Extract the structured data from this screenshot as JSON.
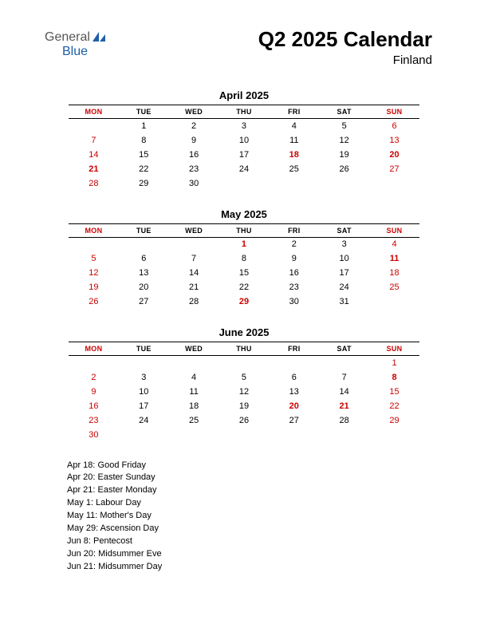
{
  "logo": {
    "text1": "General",
    "text2": "Blue"
  },
  "header": {
    "title": "Q2 2025 Calendar",
    "subtitle": "Finland"
  },
  "colors": {
    "text": "#000000",
    "red": "#cc0000",
    "background": "#ffffff",
    "logo_gray": "#555555",
    "logo_blue": "#1e5fa8"
  },
  "day_headers": [
    "MON",
    "TUE",
    "WED",
    "THU",
    "FRI",
    "SAT",
    "SUN"
  ],
  "header_red_cols": [
    0,
    6
  ],
  "months": [
    {
      "title": "April 2025",
      "weeks": [
        [
          {
            "d": ""
          },
          {
            "d": "1"
          },
          {
            "d": "2"
          },
          {
            "d": "3"
          },
          {
            "d": "4"
          },
          {
            "d": "5"
          },
          {
            "d": "6",
            "r": 1
          }
        ],
        [
          {
            "d": "7",
            "r": 1
          },
          {
            "d": "8"
          },
          {
            "d": "9"
          },
          {
            "d": "10"
          },
          {
            "d": "11"
          },
          {
            "d": "12"
          },
          {
            "d": "13",
            "r": 1
          }
        ],
        [
          {
            "d": "14",
            "r": 1
          },
          {
            "d": "15"
          },
          {
            "d": "16"
          },
          {
            "d": "17"
          },
          {
            "d": "18",
            "r": 1,
            "b": 1
          },
          {
            "d": "19"
          },
          {
            "d": "20",
            "r": 1,
            "b": 1
          }
        ],
        [
          {
            "d": "21",
            "r": 1,
            "b": 1
          },
          {
            "d": "22"
          },
          {
            "d": "23"
          },
          {
            "d": "24"
          },
          {
            "d": "25"
          },
          {
            "d": "26"
          },
          {
            "d": "27",
            "r": 1
          }
        ],
        [
          {
            "d": "28",
            "r": 1
          },
          {
            "d": "29"
          },
          {
            "d": "30"
          },
          {
            "d": ""
          },
          {
            "d": ""
          },
          {
            "d": ""
          },
          {
            "d": ""
          }
        ]
      ]
    },
    {
      "title": "May 2025",
      "weeks": [
        [
          {
            "d": ""
          },
          {
            "d": ""
          },
          {
            "d": ""
          },
          {
            "d": "1",
            "r": 1,
            "b": 1
          },
          {
            "d": "2"
          },
          {
            "d": "3"
          },
          {
            "d": "4",
            "r": 1
          }
        ],
        [
          {
            "d": "5",
            "r": 1
          },
          {
            "d": "6"
          },
          {
            "d": "7"
          },
          {
            "d": "8"
          },
          {
            "d": "9"
          },
          {
            "d": "10"
          },
          {
            "d": "11",
            "r": 1,
            "b": 1
          }
        ],
        [
          {
            "d": "12",
            "r": 1
          },
          {
            "d": "13"
          },
          {
            "d": "14"
          },
          {
            "d": "15"
          },
          {
            "d": "16"
          },
          {
            "d": "17"
          },
          {
            "d": "18",
            "r": 1
          }
        ],
        [
          {
            "d": "19",
            "r": 1
          },
          {
            "d": "20"
          },
          {
            "d": "21"
          },
          {
            "d": "22"
          },
          {
            "d": "23"
          },
          {
            "d": "24"
          },
          {
            "d": "25",
            "r": 1
          }
        ],
        [
          {
            "d": "26",
            "r": 1
          },
          {
            "d": "27"
          },
          {
            "d": "28"
          },
          {
            "d": "29",
            "r": 1,
            "b": 1
          },
          {
            "d": "30"
          },
          {
            "d": "31"
          },
          {
            "d": ""
          }
        ]
      ]
    },
    {
      "title": "June 2025",
      "weeks": [
        [
          {
            "d": ""
          },
          {
            "d": ""
          },
          {
            "d": ""
          },
          {
            "d": ""
          },
          {
            "d": ""
          },
          {
            "d": ""
          },
          {
            "d": "1",
            "r": 1
          }
        ],
        [
          {
            "d": "2",
            "r": 1
          },
          {
            "d": "3"
          },
          {
            "d": "4"
          },
          {
            "d": "5"
          },
          {
            "d": "6"
          },
          {
            "d": "7"
          },
          {
            "d": "8",
            "r": 1,
            "b": 1
          }
        ],
        [
          {
            "d": "9",
            "r": 1
          },
          {
            "d": "10"
          },
          {
            "d": "11"
          },
          {
            "d": "12"
          },
          {
            "d": "13"
          },
          {
            "d": "14"
          },
          {
            "d": "15",
            "r": 1
          }
        ],
        [
          {
            "d": "16",
            "r": 1
          },
          {
            "d": "17"
          },
          {
            "d": "18"
          },
          {
            "d": "19"
          },
          {
            "d": "20",
            "r": 1,
            "b": 1
          },
          {
            "d": "21",
            "r": 1,
            "b": 1
          },
          {
            "d": "22",
            "r": 1
          }
        ],
        [
          {
            "d": "23",
            "r": 1
          },
          {
            "d": "24"
          },
          {
            "d": "25"
          },
          {
            "d": "26"
          },
          {
            "d": "27"
          },
          {
            "d": "28"
          },
          {
            "d": "29",
            "r": 1
          }
        ],
        [
          {
            "d": "30",
            "r": 1
          },
          {
            "d": ""
          },
          {
            "d": ""
          },
          {
            "d": ""
          },
          {
            "d": ""
          },
          {
            "d": ""
          },
          {
            "d": ""
          }
        ]
      ]
    }
  ],
  "holidays": [
    "Apr 18: Good Friday",
    "Apr 20: Easter Sunday",
    "Apr 21: Easter Monday",
    "May 1: Labour Day",
    "May 11: Mother's Day",
    "May 29: Ascension Day",
    "Jun 8: Pentecost",
    "Jun 20: Midsummer Eve",
    "Jun 21: Midsummer Day"
  ]
}
